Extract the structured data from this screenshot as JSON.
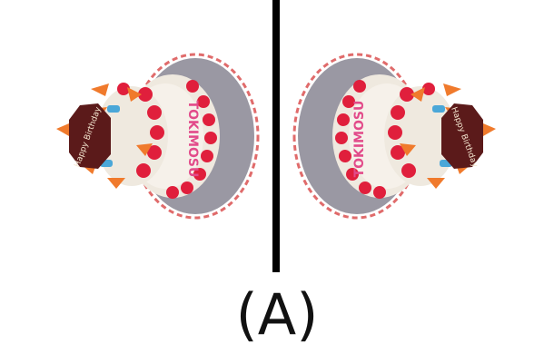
{
  "caption": "(A)",
  "images": {
    "left": {
      "plaque_text": "Happy Birthday",
      "band_text": "TOKIMOSU"
    },
    "right": {
      "plaque_text": "Happy Birthday",
      "band_text": "TOKIMOSU"
    }
  },
  "colors": {
    "divider": "#000000",
    "plate": "#9a98a3",
    "frosting": "#efe9df",
    "strawberry": "#e01f3c",
    "plaque": "#5b1a1a",
    "candle": "#f07a2c"
  }
}
